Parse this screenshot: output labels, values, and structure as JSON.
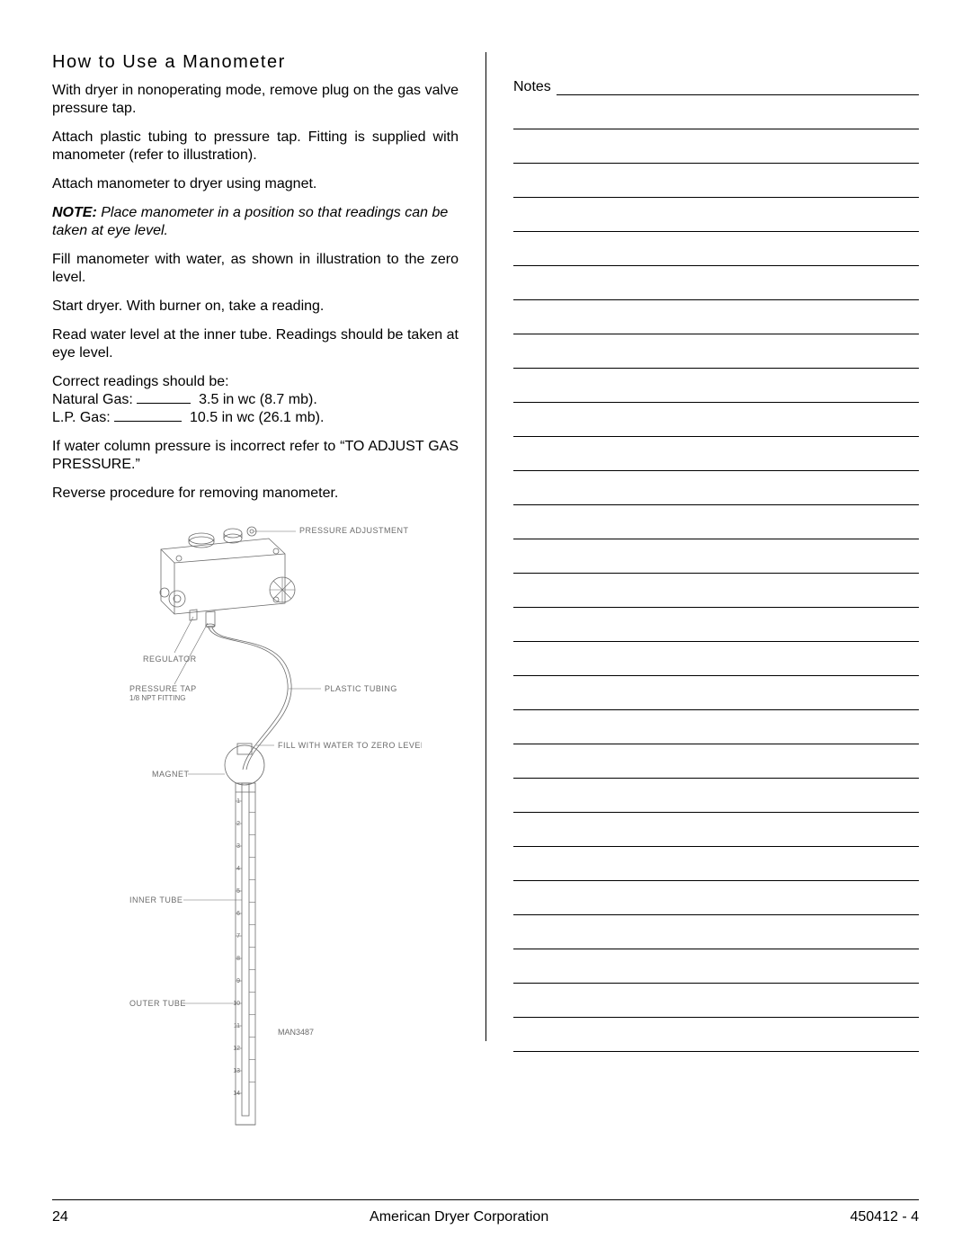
{
  "left": {
    "title": "How to Use a Manometer",
    "p1": "With dryer in nonoperating mode, remove plug on the gas valve pressure tap.",
    "p2": "Attach plastic tubing to pressure tap.  Fitting is supplied with manometer (refer to illustration).",
    "p3": "Attach manometer to dryer using magnet.",
    "note_label": "NOTE:",
    "note_body": " Place manometer in a position so that readings can be taken at eye level.",
    "p4": "Fill manometer with water, as shown in illustration to the zero level.",
    "p5": "Start dryer.  With burner on, take a reading.",
    "p6": "Read water level at the inner tube.  Readings should be taken at eye level.",
    "readings_intro": "Correct readings should be:",
    "ng_label": "Natural Gas:",
    "ng_value": "3.5 in wc (8.7 mb).",
    "lp_label": "L.P. Gas:",
    "lp_value": "10.5 in wc (26.1 mb).",
    "p7": "If water column pressure is incorrect refer to “TO ADJUST GAS PRESSURE.”",
    "p8": "Reverse procedure for removing manometer.",
    "illus": {
      "pressure_adjustment": "PRESSURE ADJUSTMENT",
      "regulator": "REGULATOR",
      "pressure_tap_1": "PRESSURE TAP",
      "pressure_tap_2": "1/8 NPT FITTING",
      "plastic_tubing": "PLASTIC TUBING",
      "fill_water": "FILL WITH WATER TO ZERO LEVEL",
      "magnet": "MAGNET",
      "inner_tube": "INNER TUBE",
      "outer_tube": "OUTER TUBE",
      "code": "MAN3487"
    }
  },
  "right": {
    "notes_label": "Notes",
    "line_count": 28
  },
  "footer": {
    "page": "24",
    "center": "American Dryer Corporation",
    "docnum": "450412 - 4"
  }
}
